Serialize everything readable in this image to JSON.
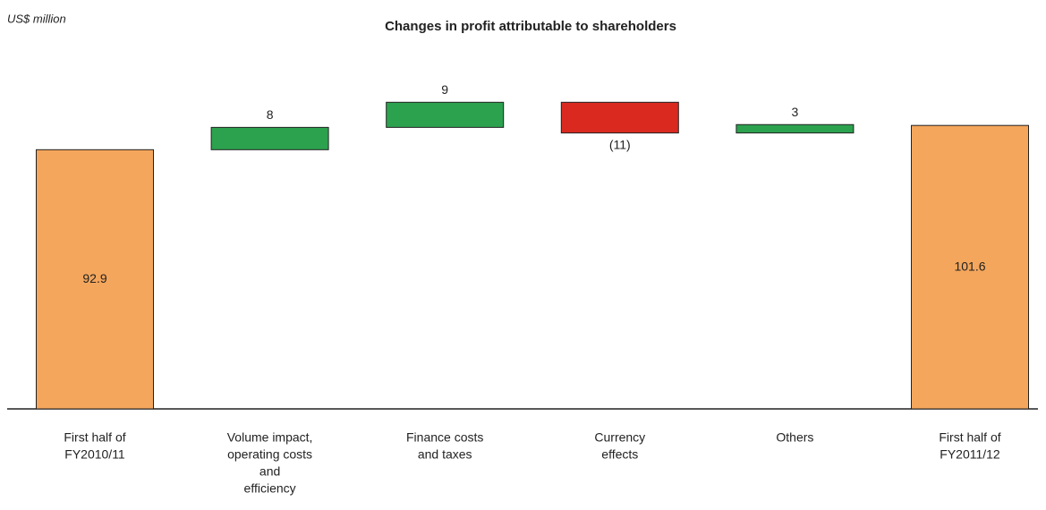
{
  "chart_data": {
    "type": "waterfall",
    "title": "Changes in profit attributable to shareholders",
    "unit_label": "US$ million",
    "categories": [
      [
        "First half of",
        "FY2010/11"
      ],
      [
        "Volume impact,",
        "operating costs",
        "and",
        "efficiency"
      ],
      [
        "Finance costs",
        "and taxes"
      ],
      [
        "Currency",
        "effects"
      ],
      [
        "Others"
      ],
      [
        "First half of",
        "FY2011/12"
      ]
    ],
    "values": [
      92.9,
      8,
      9,
      -11,
      3,
      101.6
    ],
    "value_labels": [
      "92.9",
      "8",
      "9",
      "(11)",
      "3",
      "101.6"
    ],
    "totals": [
      true,
      false,
      false,
      false,
      false,
      true
    ],
    "colors": {
      "total": "#f4a65c",
      "increase": "#2ca24e",
      "decrease": "#da2a20"
    },
    "ylim": [
      0,
      110
    ]
  }
}
